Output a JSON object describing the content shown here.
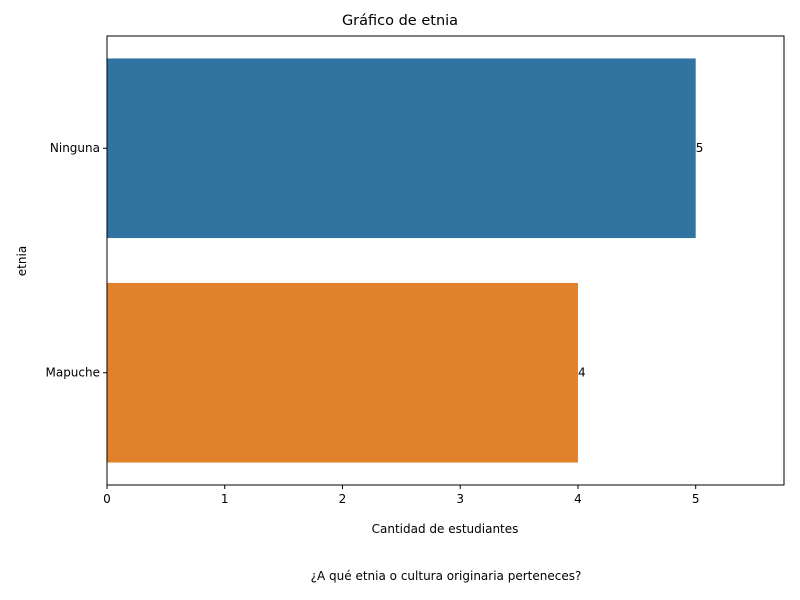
{
  "chart_data": {
    "type": "bar",
    "orientation": "horizontal",
    "title": "Gráfico de etnia",
    "xlabel": "Cantidad de estudiantes",
    "ylabel": "etnia",
    "categories": [
      "Ninguna",
      "Mapuche"
    ],
    "values": [
      5,
      4
    ],
    "data_labels": [
      "5",
      "4"
    ],
    "colors": [
      "#3274a1",
      "#e1812c"
    ],
    "xlim": [
      0,
      5.75
    ],
    "xticks": [
      0,
      1,
      2,
      3,
      4,
      5
    ],
    "grid": false,
    "caption": "¿A qué etnia o cultura originaria perteneces?"
  }
}
